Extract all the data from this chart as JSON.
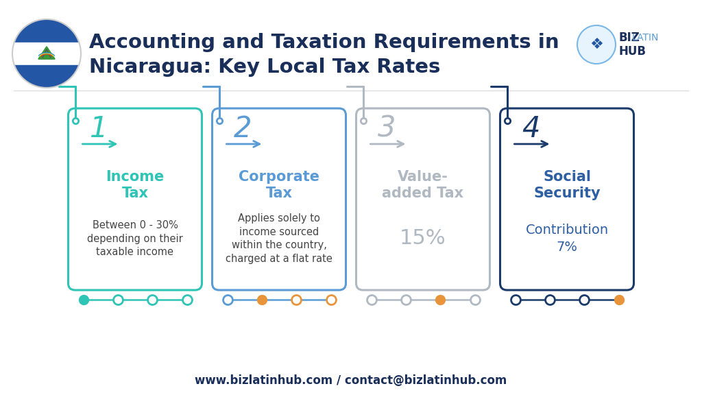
{
  "title_line1": "Accounting and Taxation Requirements in",
  "title_line2": "Nicaragua: Key Local Tax Rates",
  "title_color": "#1a2e5a",
  "title_fontsize": 21,
  "bg_color": "#ffffff",
  "footer_text": "www.bizlatinhub.com / contact@bizlatinhub.com",
  "cards": [
    {
      "number": "1",
      "title": "Income\nTax",
      "body": "Between 0 - 30%\ndepending on their\ntaxable income",
      "border_color": "#2ec4b6",
      "number_color": "#2ec4b6",
      "title_color": "#2ec4b6",
      "body_color": "#444444",
      "arrow_color": "#2ec4b6",
      "hook_color": "#2ec4b6",
      "dot_colors": [
        "#2ec4b6",
        "#2ec4b6",
        "#2ec4b6",
        "#2ec4b6"
      ],
      "dot_hollow": [
        false,
        true,
        true,
        true
      ]
    },
    {
      "number": "2",
      "title": "Corporate\nTax",
      "body": "Applies solely to\nincome sourced\nwithin the country,\ncharged at a flat rate",
      "border_color": "#5b9bd5",
      "number_color": "#5b9bd5",
      "title_color": "#5b9bd5",
      "body_color": "#444444",
      "arrow_color": "#5b9bd5",
      "hook_color": "#5b9bd5",
      "dot_colors": [
        "#5b9bd5",
        "#e8943a",
        "#e8943a",
        "#e8943a"
      ],
      "dot_hollow": [
        true,
        false,
        true,
        true
      ]
    },
    {
      "number": "3",
      "title": "Value-\nadded Tax",
      "body": "15%",
      "border_color": "#b0b8c1",
      "number_color": "#b0b8c1",
      "title_color": "#b0b8c1",
      "body_color": "#b0b8c1",
      "arrow_color": "#b0b8c1",
      "hook_color": "#b0b8c1",
      "dot_colors": [
        "#b0b8c1",
        "#b0b8c1",
        "#e8943a",
        "#b0b8c1"
      ],
      "dot_hollow": [
        true,
        true,
        false,
        true
      ]
    },
    {
      "number": "4",
      "title": "Social\nSecurity",
      "body": "Contribution\n7%",
      "border_color": "#1a3a6b",
      "number_color": "#1a3a6b",
      "title_color": "#2e5fa3",
      "body_color": "#2e5fa3",
      "arrow_color": "#1a3a6b",
      "hook_color": "#1a3a6b",
      "dot_colors": [
        "#1a3a6b",
        "#1a3a6b",
        "#1a3a6b",
        "#e8943a"
      ],
      "dot_hollow": [
        true,
        true,
        true,
        false
      ]
    }
  ]
}
